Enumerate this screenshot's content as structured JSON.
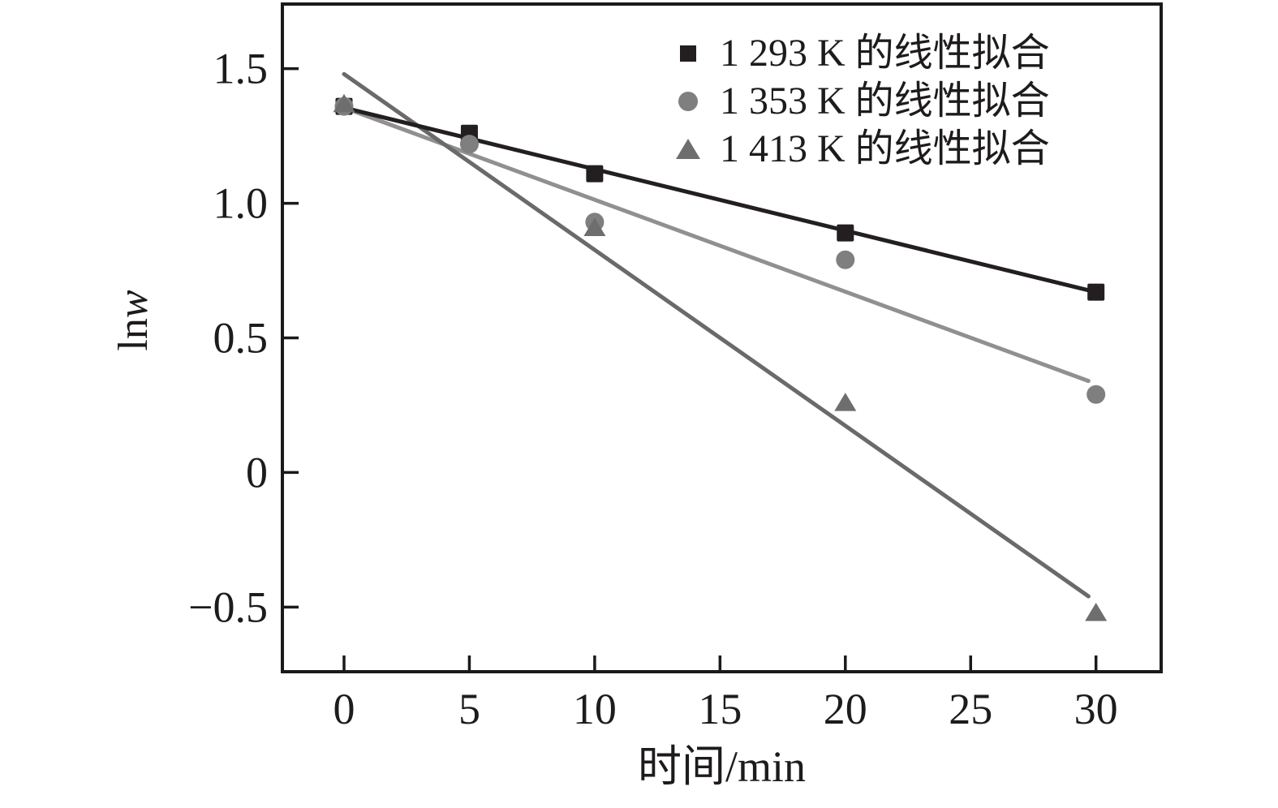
{
  "chart_data": {
    "type": "scatter",
    "title": "",
    "xlabel": "时间/min",
    "ylabel": "lnw",
    "ylabel_roman": "ln",
    "ylabel_italic": "w",
    "xlim": [
      -2.46,
      32.6
    ],
    "ylim": [
      -0.74,
      1.74
    ],
    "x_ticks": [
      0,
      5,
      10,
      15,
      20,
      25,
      30
    ],
    "x_tick_labels": [
      "0",
      "5",
      "10",
      "15",
      "20",
      "25",
      "30"
    ],
    "y_ticks": [
      1.5,
      1.0,
      0.5,
      0,
      -0.5
    ],
    "y_tick_labels": [
      "1.5",
      "1.0",
      "0.5",
      "0",
      "−0.5"
    ],
    "grid": false,
    "legend_position": "top-right-inside",
    "axis_color": "#1a1a1a",
    "text_color": "#1e1b1c",
    "series": [
      {
        "name": "1 293 K 的线性拟合",
        "temperature_K": 1293,
        "marker": "square",
        "color": "#231f20",
        "line_color": "#231f20",
        "points": [
          [
            0,
            1.36
          ],
          [
            5,
            1.26
          ],
          [
            10,
            1.11
          ],
          [
            20,
            0.89
          ],
          [
            30,
            0.67
          ]
        ],
        "fit_line": [
          [
            0,
            1.355
          ],
          [
            30,
            0.67
          ]
        ]
      },
      {
        "name": "1 353 K 的线性拟合",
        "temperature_K": 1353,
        "marker": "circle",
        "color": "#7f7f7f",
        "line_color": "#909090",
        "points": [
          [
            0,
            1.36
          ],
          [
            5,
            1.22
          ],
          [
            10,
            0.93
          ],
          [
            20,
            0.79
          ],
          [
            30,
            0.29
          ]
        ],
        "fit_line": [
          [
            0,
            1.355
          ],
          [
            29.7,
            0.34
          ]
        ]
      },
      {
        "name": "1 413 K 的线性拟合",
        "temperature_K": 1413,
        "marker": "triangle",
        "color": "#6e6e6e",
        "line_color": "#6a6a6a",
        "points": [
          [
            0,
            1.37
          ],
          [
            10,
            0.91
          ],
          [
            20,
            0.26
          ],
          [
            30,
            -0.52
          ]
        ],
        "fit_line": [
          [
            0,
            1.48
          ],
          [
            29.7,
            -0.46
          ]
        ]
      }
    ]
  }
}
